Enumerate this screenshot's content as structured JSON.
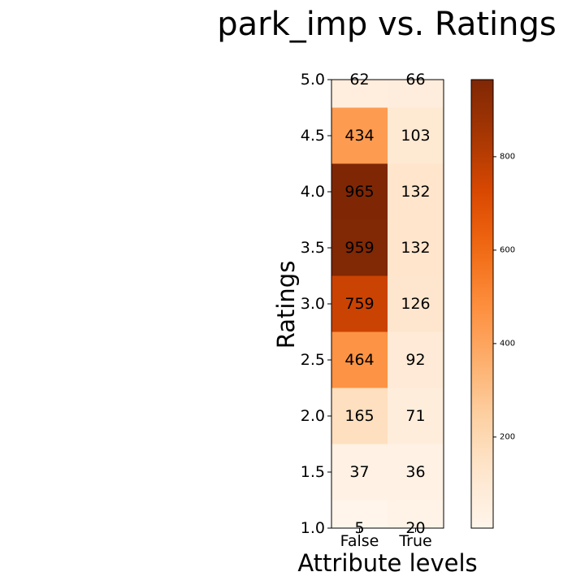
{
  "chart_data": {
    "type": "heatmap",
    "title": "park_imp vs. Ratings",
    "xlabel": "Attribute levels",
    "ylabel": "Ratings",
    "x_categories": [
      "False",
      "True"
    ],
    "y_ticks": [
      "1.0",
      "1.5",
      "2.0",
      "2.5",
      "3.0",
      "3.5",
      "4.0",
      "4.5",
      "5.0"
    ],
    "rows": [
      {
        "rating": "5.0",
        "values": [
          62,
          66
        ]
      },
      {
        "rating": "4.5",
        "values": [
          434,
          103
        ]
      },
      {
        "rating": "4.0",
        "values": [
          965,
          132
        ]
      },
      {
        "rating": "3.5",
        "values": [
          959,
          132
        ]
      },
      {
        "rating": "3.0",
        "values": [
          759,
          126
        ]
      },
      {
        "rating": "2.5",
        "values": [
          464,
          92
        ]
      },
      {
        "rating": "2.0",
        "values": [
          165,
          71
        ]
      },
      {
        "rating": "1.5",
        "values": [
          37,
          36
        ]
      },
      {
        "rating": "1.0",
        "values": [
          5,
          20
        ]
      }
    ],
    "colormap": "Oranges",
    "color_range": [
      5,
      965
    ],
    "colorbar_ticks": [
      "200",
      "400",
      "600",
      "800"
    ],
    "grid": false
  }
}
